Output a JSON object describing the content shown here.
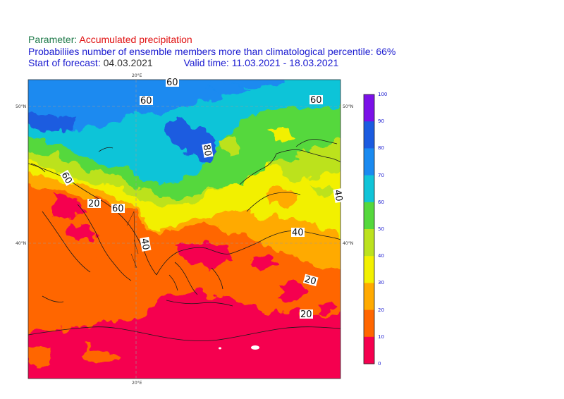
{
  "header": {
    "param_label": "Parameter:",
    "param_value": "Accumulated precipitation",
    "line2": "Probabiliies number of ensemble members more than climatological percentile: 66%",
    "start_label": "Start of forecast:",
    "start_value": "04.03.2021",
    "valid_label": "Valid time:",
    "valid_value": "11.03.2021 - 18.03.2021"
  },
  "axes": {
    "lon_top": "20°E",
    "lon_bottom": "20°E",
    "lat_50_left": "50°N",
    "lat_50_right": "50°N",
    "lat_40_left": "40°N",
    "lat_40_right": "40°N"
  },
  "contour_labels": [
    "60",
    "60",
    "60",
    "80",
    "60",
    "20",
    "60",
    "40",
    "40",
    "40",
    "20",
    "20"
  ],
  "colorbar": {
    "ticks": [
      "100",
      "90",
      "80",
      "70",
      "60",
      "50",
      "40",
      "30",
      "20",
      "10",
      "0"
    ],
    "colors": [
      "#7b10e8",
      "#1b5be0",
      "#1a8af0",
      "#10c4d8",
      "#55d83c",
      "#bce21e",
      "#f2f000",
      "#ffaa00",
      "#ff6600",
      "#f5004f"
    ]
  }
}
